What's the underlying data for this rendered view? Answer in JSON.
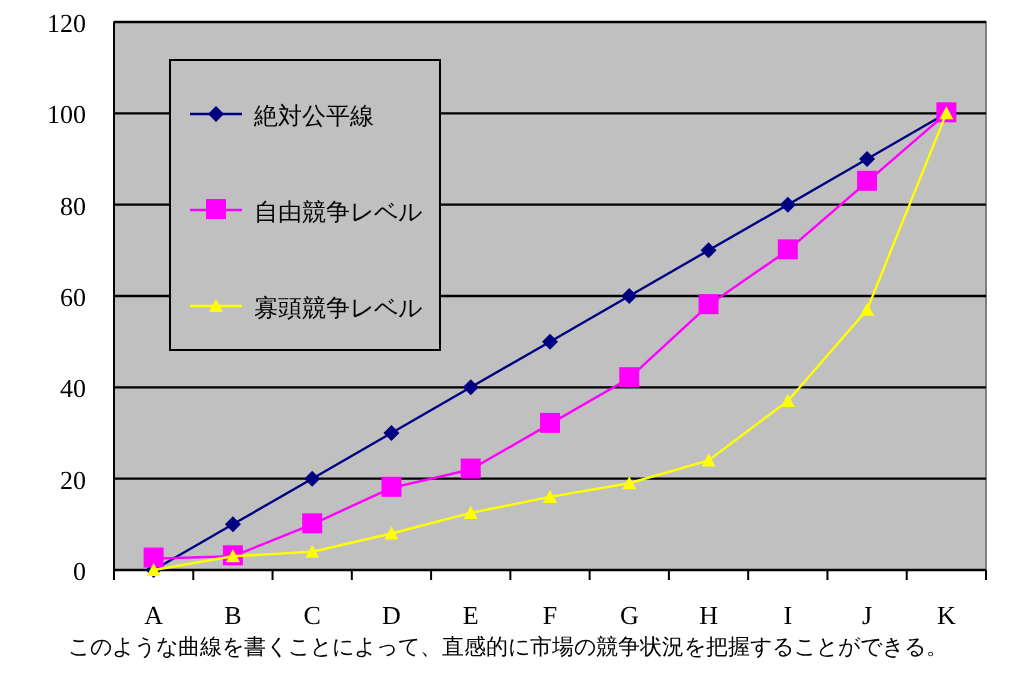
{
  "chart_data": {
    "type": "line",
    "categories": [
      "A",
      "B",
      "C",
      "D",
      "E",
      "F",
      "G",
      "H",
      "I",
      "J",
      "K"
    ],
    "series": [
      {
        "name": "絶対公平線",
        "color": "#000080",
        "marker": "diamond",
        "values": [
          0,
          10,
          20,
          30,
          40,
          50,
          60,
          70,
          80,
          90,
          100
        ]
      },
      {
        "name": "自由競争レベル",
        "color": "#ff00ff",
        "marker": "square",
        "values": [
          2.5,
          3,
          10,
          18,
          22,
          32,
          42,
          58,
          70,
          85,
          100
        ]
      },
      {
        "name": "寡頭競争レベル",
        "color": "#ffff00",
        "marker": "triangle",
        "values": [
          0,
          3,
          4,
          8,
          12.5,
          16,
          19,
          24,
          37,
          57,
          100
        ]
      }
    ],
    "ylim": [
      0,
      120
    ],
    "yticks": [
      0,
      20,
      40,
      60,
      80,
      100,
      120
    ],
    "grid": "y",
    "legend": "top left",
    "annotations": [
      "このような曲線を書くことによって、直感的に市場の競争状況を把握することができる。"
    ]
  }
}
